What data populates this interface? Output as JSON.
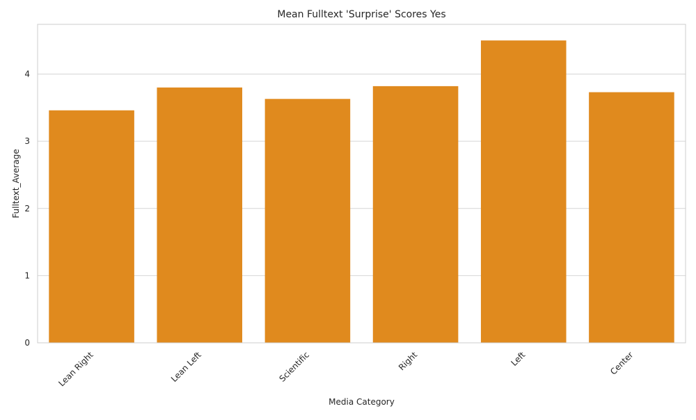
{
  "chart_data": {
    "type": "bar",
    "title": "Mean Fulltext 'Surprise' Scores Yes",
    "xlabel": "Media Category",
    "ylabel": "Fulltext_Average",
    "categories": [
      "Lean Right",
      "Lean Left",
      "Scientific",
      "Right",
      "Left",
      "Center"
    ],
    "values": [
      3.46,
      3.8,
      3.63,
      3.82,
      4.5,
      3.73
    ],
    "ylim": [
      0,
      4.74
    ],
    "yticks": [
      0,
      1,
      2,
      3,
      4
    ],
    "grid": "horizontal",
    "bar_color": "#e08a1e",
    "background": "#ffffff"
  }
}
